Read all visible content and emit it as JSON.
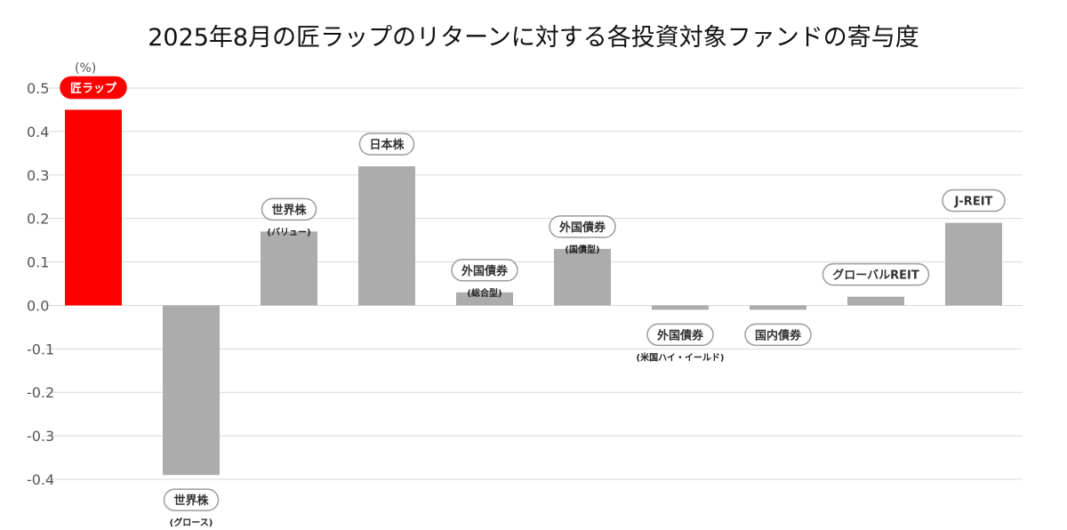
{
  "chart_data": {
    "type": "bar",
    "title": "2025年8月の匠ラップのリターンに対する各投資対象ファンドの寄与度",
    "ylabel": "(%)",
    "ylim": [
      -0.4,
      0.5
    ],
    "yticks": [
      "0.5",
      "0.4",
      "0.3",
      "0.2",
      "0.1",
      "0.0",
      "-0.1",
      "-0.2",
      "-0.3",
      "-0.4"
    ],
    "grid": true,
    "categories": [
      {
        "label": "匠ラップ",
        "sub": "",
        "value": 0.45,
        "color": "#ff0000",
        "highlight": true
      },
      {
        "label": "世界株",
        "sub": "(グロース)",
        "value": -0.39,
        "color": "#acacac",
        "highlight": false
      },
      {
        "label": "世界株",
        "sub": "(バリュー)",
        "value": 0.17,
        "color": "#acacac",
        "highlight": false
      },
      {
        "label": "日本株",
        "sub": "",
        "value": 0.32,
        "color": "#acacac",
        "highlight": false
      },
      {
        "label": "外国債券",
        "sub": "(総合型)",
        "value": 0.03,
        "color": "#acacac",
        "highlight": false
      },
      {
        "label": "外国債券",
        "sub": "(国債型)",
        "value": 0.13,
        "color": "#acacac",
        "highlight": false
      },
      {
        "label": "外国債券",
        "sub": "(米国ハイ・イールド)",
        "value": -0.01,
        "color": "#acacac",
        "highlight": false
      },
      {
        "label": "国内債券",
        "sub": "",
        "value": -0.01,
        "color": "#acacac",
        "highlight": false
      },
      {
        "label": "グローバルREIT",
        "sub": "",
        "value": 0.02,
        "color": "#acacac",
        "highlight": false
      },
      {
        "label": "J-REIT",
        "sub": "",
        "value": 0.19,
        "color": "#acacac",
        "highlight": false
      }
    ]
  }
}
